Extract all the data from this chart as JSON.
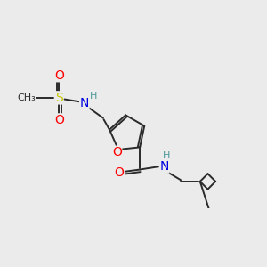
{
  "background_color": "#ebebeb",
  "bond_color": "#2a2a2a",
  "bond_width": 1.4,
  "atoms": {
    "S": {
      "color": "#c8c800"
    },
    "O": {
      "color": "#ff0000"
    },
    "N": {
      "color": "#0000e0"
    },
    "H": {
      "color": "#4a9898"
    },
    "C": {
      "color": "#2a2a2a"
    }
  },
  "scale": 1.0
}
